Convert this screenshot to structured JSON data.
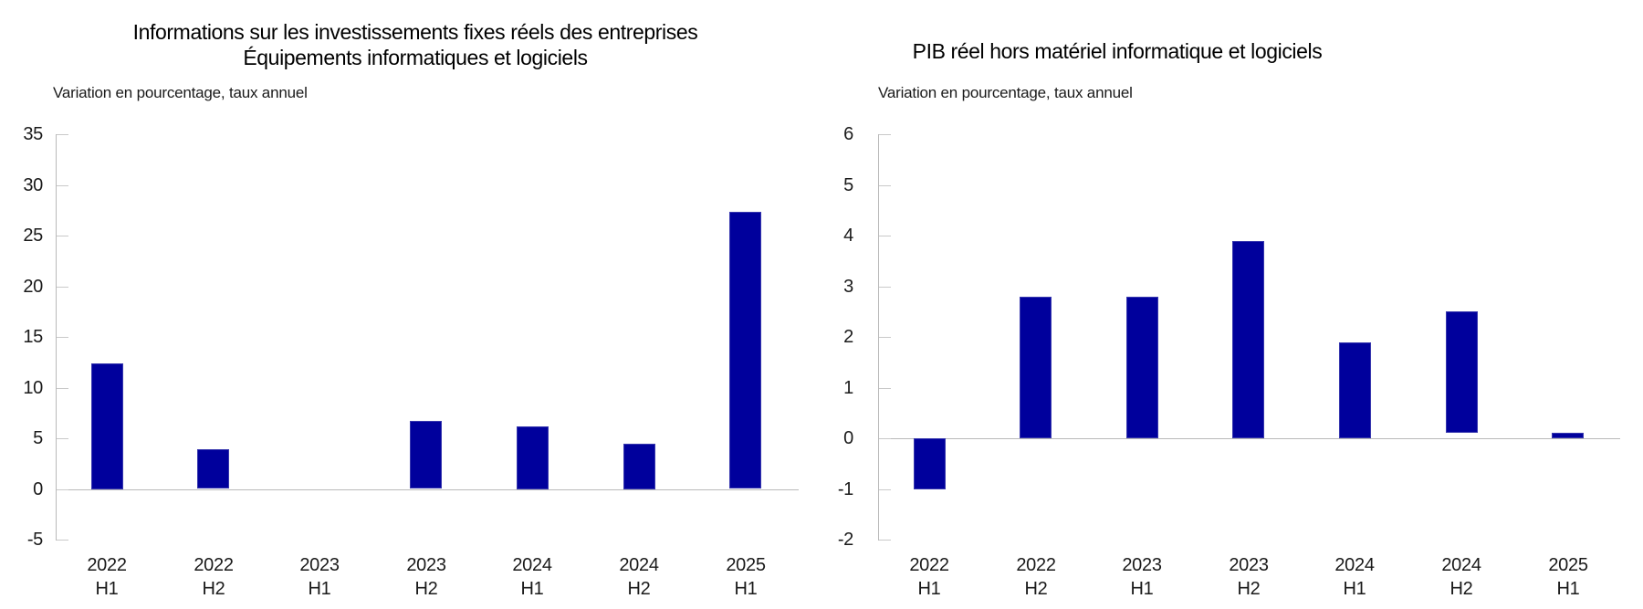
{
  "figure": {
    "background": "#ffffff"
  },
  "chart_data": [
    {
      "type": "bar",
      "title": "Informations sur les investissements fixes réels des entreprises — Équipements informatiques et logiciels",
      "title_lines": [
        "Informations sur les investissements fixes réels des entreprises",
        "Équipements informatiques et logiciels"
      ],
      "subtitle": "Variation en pourcentage, taux annuel",
      "categories": [
        "2022 H1",
        "2022 H2",
        "2023 H1",
        "2023 H2",
        "2024 H1",
        "2024 H2",
        "2025 H1"
      ],
      "values": [
        12.4,
        3.9,
        0.0,
        6.7,
        6.2,
        4.5,
        27.3
      ],
      "bar_bases": [
        0,
        0,
        0,
        0,
        0,
        0,
        0
      ],
      "ylim": [
        -5,
        35
      ],
      "yticks": [
        35,
        30,
        25,
        20,
        15,
        10,
        5,
        0,
        -5
      ],
      "grid": false,
      "legend": null,
      "zero_line": true,
      "bar_color": "#00009c",
      "axis_color": "#b9b9b9",
      "tick_color": "#c9c9c9",
      "text_color": "#1a1a1a"
    },
    {
      "type": "bar",
      "title": "PIB réel hors matériel informatique et logiciels",
      "title_lines": [
        "PIB réel hors matériel informatique et logiciels"
      ],
      "subtitle": "Variation en pourcentage, taux annuel",
      "categories": [
        "2022 H1",
        "2022 H2",
        "2023 H1",
        "2023 H2",
        "2024 H1",
        "2024 H2",
        "2025 H1"
      ],
      "values": [
        -1.0,
        2.8,
        2.8,
        3.9,
        1.9,
        2.5,
        0.1
      ],
      "bar_bases": [
        0,
        0,
        0,
        0,
        0,
        0.1,
        0
      ],
      "ylim": [
        -2,
        6
      ],
      "yticks": [
        6,
        5,
        4,
        3,
        2,
        1,
        0,
        -1,
        -2
      ],
      "grid": false,
      "legend": null,
      "zero_line": true,
      "bar_color": "#00009c",
      "axis_color": "#b9b9b9",
      "tick_color": "#c9c9c9",
      "text_color": "#1a1a1a"
    }
  ]
}
